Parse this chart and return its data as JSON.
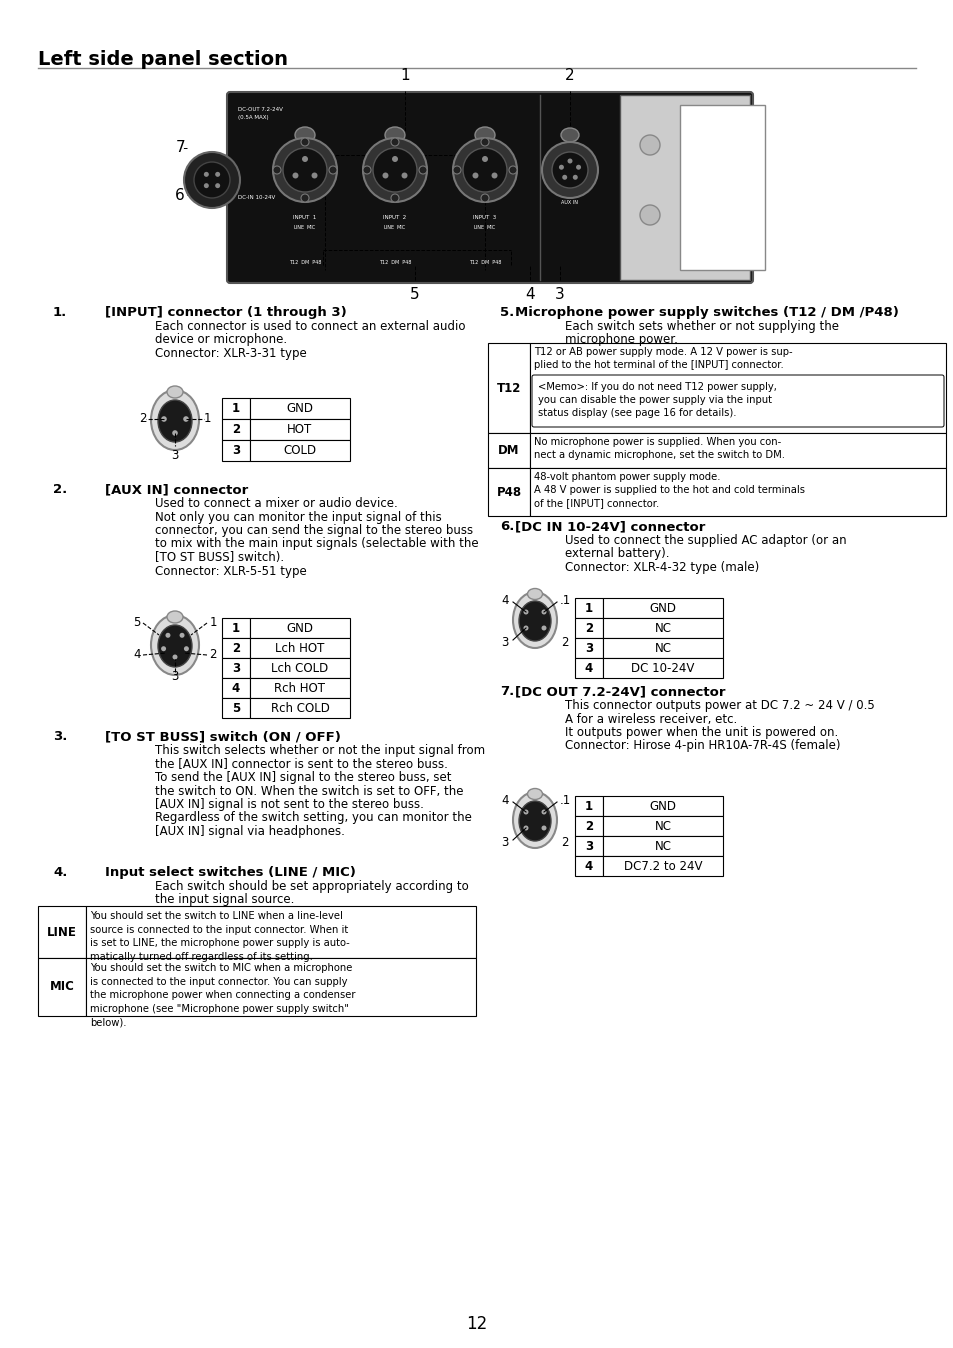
{
  "title": "Left side panel section",
  "page_number": "12",
  "bg_color": "#ffffff",
  "text_color": "#000000",
  "section1_heading": "[INPUT] connector (1 through 3)",
  "section1_body1": "Each connector is used to connect an external audio",
  "section1_body2": "device or microphone.",
  "section1_body3": "Connector: XLR-3-31 type",
  "section1_table": [
    [
      "1",
      "GND"
    ],
    [
      "2",
      "HOT"
    ],
    [
      "3",
      "COLD"
    ]
  ],
  "section2_heading": "[AUX IN] connector",
  "section2_body1": "Used to connect a mixer or audio device.",
  "section2_body2": "Not only you can monitor the input signal of this",
  "section2_body3": "connector, you can send the signal to the stereo buss",
  "section2_body4": "to mix with the main input signals (selectable with the",
  "section2_body5": "[TO ST BUSS] switch).",
  "section2_body6": "Connector: XLR-5-51 type",
  "section2_table": [
    [
      "1",
      "GND"
    ],
    [
      "2",
      "Lch HOT"
    ],
    [
      "3",
      "Lch COLD"
    ],
    [
      "4",
      "Rch HOT"
    ],
    [
      "5",
      "Rch COLD"
    ]
  ],
  "section3_heading": "[TO ST BUSS] switch (ON / OFF)",
  "section3_body1": "This switch selects whether or not the input signal from",
  "section3_body2": "the [AUX IN] connector is sent to the stereo buss.",
  "section3_body3": "To send the [AUX IN] signal to the stereo buss, set",
  "section3_body4": "the switch to ON. When the switch is set to OFF, the",
  "section3_body5": "[AUX IN] signal is not sent to the stereo buss.",
  "section3_body6": "Regardless of the switch setting, you can monitor the",
  "section3_body7": "[AUX IN] signal via headphones.",
  "section4_heading": "Input select switches (LINE / MIC)",
  "section4_body1": "Each switch should be set appropriately according to",
  "section4_body2": "the input signal source.",
  "section4_line_text": "You should set the switch to LINE when a line-level\nsource is connected to the input connector. When it\nis set to LINE, the microphone power supply is auto-\nmatically turned off regardless of its setting.",
  "section4_mic_text": "You should set the switch to MIC when a microphone\nis connected to the input connector. You can supply\nthe microphone power when connecting a condenser\nmicrophone (see \"Microphone power supply switch\"\nbelow).",
  "section5_heading": "Microphone power supply switches (T12 / DM /P48)",
  "section5_body1": "Each switch sets whether or not supplying the",
  "section5_body2": "microphone power.",
  "section5_t12_top": "T12 or AB power supply mode. A 12 V power is sup-\nplied to the hot terminal of the [INPUT] connector.",
  "section5_t12_memo": "<Memo>: If you do not need T12 power supply,\nyou can disable the power supply via the input\nstatus display (see page 16 for details).",
  "section5_dm_text": "No microphone power is supplied. When you con-\nnect a dynamic microphone, set the switch to DM.",
  "section5_p48_text": "48-volt phantom power supply mode.\nA 48 V power is supplied to the hot and cold terminals\nof the [INPUT] connector.",
  "section6_heading": "[DC IN 10-24V] connector",
  "section6_body1": "Used to connect the supplied AC adaptor (or an",
  "section6_body2": "external battery).",
  "section6_body3": "Connector: XLR-4-32 type (male)",
  "section6_table": [
    [
      "1",
      "GND"
    ],
    [
      "2",
      "NC"
    ],
    [
      "3",
      "NC"
    ],
    [
      "4",
      "DC 10-24V"
    ]
  ],
  "section7_heading": "[DC OUT 7.2-24V] connector",
  "section7_body1": "This connector outputs power at DC 7.2 ~ 24 V / 0.5",
  "section7_body2": "A for a wireless receiver, etc.",
  "section7_body3": "It outputs power when the unit is powered on.",
  "section7_body4": "Connector: Hirose 4-pin HR10A-7R-4S (female)",
  "section7_table": [
    [
      "1",
      "GND"
    ],
    [
      "2",
      "NC"
    ],
    [
      "3",
      "NC"
    ],
    [
      "4",
      "DC7.2 to 24V"
    ]
  ]
}
